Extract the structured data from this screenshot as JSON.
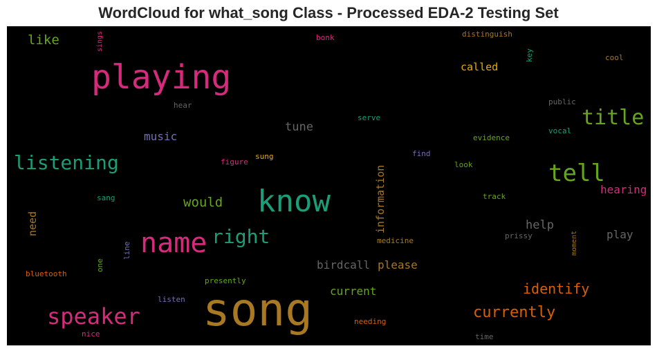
{
  "chart_data": {
    "type": "wordcloud",
    "title": "WordCloud for what_song Class - Processed EDA-2 Testing Set",
    "background": "#000000",
    "words": [
      {
        "text": "song",
        "size": 66,
        "color": "#a87823",
        "rotate": 0
      },
      {
        "text": "playing",
        "size": 48,
        "color": "#d62b7d",
        "rotate": 0
      },
      {
        "text": "know",
        "size": 44,
        "color": "#1b9e77",
        "rotate": 0
      },
      {
        "text": "name",
        "size": 40,
        "color": "#d62b7d",
        "rotate": 0
      },
      {
        "text": "tell",
        "size": 34,
        "color": "#66a61e",
        "rotate": 0
      },
      {
        "text": "title",
        "size": 30,
        "color": "#66a61e",
        "rotate": 0
      },
      {
        "text": "speaker",
        "size": 32,
        "color": "#d62b7d",
        "rotate": 0
      },
      {
        "text": "listening",
        "size": 28,
        "color": "#1b9e77",
        "rotate": 0
      },
      {
        "text": "right",
        "size": 28,
        "color": "#1b9e77",
        "rotate": 0
      },
      {
        "text": "currently",
        "size": 22,
        "color": "#d95f02",
        "rotate": 0
      },
      {
        "text": "identify",
        "size": 20,
        "color": "#d95f02",
        "rotate": 0
      },
      {
        "text": "like",
        "size": 19,
        "color": "#66a61e",
        "rotate": 0
      },
      {
        "text": "would",
        "size": 19,
        "color": "#66a61e",
        "rotate": 0
      },
      {
        "text": "tune",
        "size": 17,
        "color": "#666666",
        "rotate": 0
      },
      {
        "text": "help",
        "size": 17,
        "color": "#666666",
        "rotate": 0
      },
      {
        "text": "play",
        "size": 16,
        "color": "#666666",
        "rotate": 0
      },
      {
        "text": "birdcall",
        "size": 16,
        "color": "#666666",
        "rotate": 0
      },
      {
        "text": "hearing",
        "size": 16,
        "color": "#d62b7d",
        "rotate": 0
      },
      {
        "text": "music",
        "size": 16,
        "color": "#7570b3",
        "rotate": 0
      },
      {
        "text": "current",
        "size": 16,
        "color": "#66a61e",
        "rotate": 0
      },
      {
        "text": "please",
        "size": 16,
        "color": "#a87823",
        "rotate": 0
      },
      {
        "text": "called",
        "size": 15,
        "color": "#e6ab02",
        "rotate": 0
      },
      {
        "text": "need",
        "size": 15,
        "color": "#a87823",
        "rotate": -90
      },
      {
        "text": "information",
        "size": 15,
        "color": "#a87823",
        "rotate": -90
      },
      {
        "text": "sings",
        "size": 10,
        "color": "#d62b7d",
        "rotate": -90
      },
      {
        "text": "bonk",
        "size": 11,
        "color": "#d62b7d",
        "rotate": 0
      },
      {
        "text": "distinguish",
        "size": 11,
        "color": "#a87823",
        "rotate": 0
      },
      {
        "text": "key",
        "size": 11,
        "color": "#1b9e77",
        "rotate": -90
      },
      {
        "text": "cool",
        "size": 11,
        "color": "#a87823",
        "rotate": 0
      },
      {
        "text": "hear",
        "size": 11,
        "color": "#666666",
        "rotate": 0
      },
      {
        "text": "public",
        "size": 11,
        "color": "#666666",
        "rotate": 0
      },
      {
        "text": "serve",
        "size": 11,
        "color": "#1b9e77",
        "rotate": 0
      },
      {
        "text": "vocal",
        "size": 11,
        "color": "#1b9e77",
        "rotate": 0
      },
      {
        "text": "evidence",
        "size": 11,
        "color": "#66a61e",
        "rotate": 0
      },
      {
        "text": "find",
        "size": 11,
        "color": "#7570b3",
        "rotate": 0
      },
      {
        "text": "figure",
        "size": 11,
        "color": "#d62b7d",
        "rotate": 0
      },
      {
        "text": "sung",
        "size": 11,
        "color": "#e6ab02",
        "rotate": 0
      },
      {
        "text": "look",
        "size": 11,
        "color": "#66a61e",
        "rotate": 0
      },
      {
        "text": "sang",
        "size": 11,
        "color": "#1b9e77",
        "rotate": 0
      },
      {
        "text": "track",
        "size": 11,
        "color": "#66a61e",
        "rotate": 0
      },
      {
        "text": "prissy",
        "size": 11,
        "color": "#666666",
        "rotate": 0
      },
      {
        "text": "moment",
        "size": 10,
        "color": "#a87823",
        "rotate": -90
      },
      {
        "text": "medicine",
        "size": 11,
        "color": "#a87823",
        "rotate": 0
      },
      {
        "text": "line",
        "size": 11,
        "color": "#7570b3",
        "rotate": -90
      },
      {
        "text": "one",
        "size": 11,
        "color": "#66a61e",
        "rotate": -90
      },
      {
        "text": "bluetooth",
        "size": 11,
        "color": "#d95f02",
        "rotate": 0
      },
      {
        "text": "presently",
        "size": 11,
        "color": "#66a61e",
        "rotate": 0
      },
      {
        "text": "listen",
        "size": 11,
        "color": "#7570b3",
        "rotate": 0
      },
      {
        "text": "needing",
        "size": 11,
        "color": "#d95f02",
        "rotate": 0
      },
      {
        "text": "nice",
        "size": 11,
        "color": "#d62b7d",
        "rotate": 0
      },
      {
        "text": "time",
        "size": 11,
        "color": "#666666",
        "rotate": 0
      }
    ]
  }
}
